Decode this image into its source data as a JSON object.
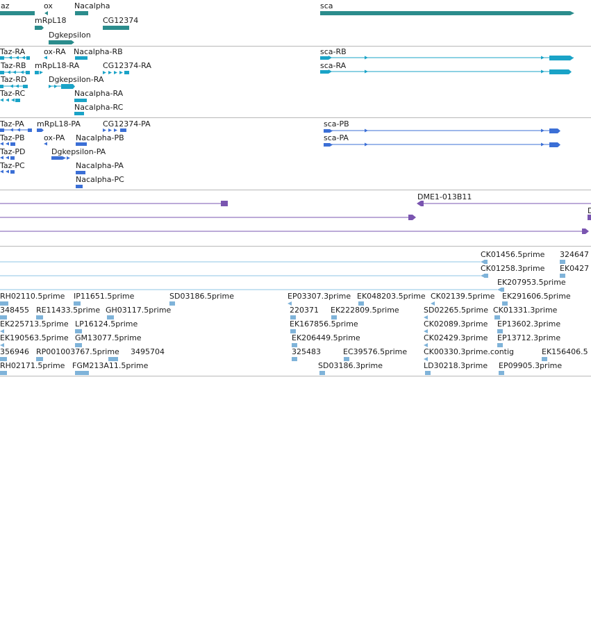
{
  "colors": {
    "gene": "#2b8c8c",
    "transcript": "#1aa3c7",
    "protein": "#3b6fd6",
    "clone": "#7a55b0",
    "est": "#7fb3d9",
    "est_line": "#8ec6e6",
    "divider": "#b8b8b8"
  },
  "tracks": {
    "genes": {
      "labels": [
        "az",
        "ox",
        "Nacalpha",
        "mRpL18",
        "CG12374",
        "Dgkepsilon",
        "sca"
      ]
    },
    "transcripts": {
      "labels": [
        "Taz-RA",
        "ox-RA",
        "Nacalpha-RB",
        "Taz-RB",
        "mRpL18-RA",
        "CG12374-RA",
        "Taz-RD",
        "Dgkepsilon-RA",
        "Taz-RC",
        "Nacalpha-RA",
        "Nacalpha-RC",
        "sca-RB",
        "sca-RA"
      ]
    },
    "proteins": {
      "labels": [
        "Taz-PA",
        "mRpL18-PA",
        "CG12374-PA",
        "Taz-PB",
        "ox-PA",
        "Nacalpha-PB",
        "Taz-PD",
        "Dgkepsilon-PA",
        "Taz-PC",
        "Nacalpha-PA",
        "Nacalpha-PC",
        "sca-PB",
        "sca-PA"
      ]
    },
    "clones": {
      "labels": [
        "DME1-013B11",
        "D"
      ]
    },
    "ests": {
      "labels": [
        "CK01456.5prime",
        "324647",
        "CK01258.3prime",
        "EK0427",
        "EK207953.5prime",
        "RH02110.5prime",
        "IP11651.5prime",
        "SD03186.5prime",
        "EP03307.3prime",
        "EK048203.5prime",
        "CK02139.5prime",
        "EK291606.5prime",
        "348455",
        "RE11433.5prime",
        "GH03117.5prime",
        "220371",
        "EK222809.5prime",
        "SD02265.5prime",
        "CK01331.3prime",
        "EK225713.5prime",
        "LP16124.5prime",
        "EK167856.5prime",
        "CK02089.3prime",
        "EP13602.3prime",
        "EK190563.5prime",
        "GM13077.5prime",
        "EK206449.5prime",
        "CK02429.3prime",
        "EP13712.3prime",
        "356946",
        "RP001003767.5prime",
        "3495704",
        "325483",
        "EC39576.5prime",
        "CK00330.3prime.contig",
        "EK156406.5",
        "RH02171.5prime",
        "FGM213A11.5prime",
        "SD03186.3prime",
        "LD30218.3prime",
        "EP09905.3prime"
      ]
    }
  }
}
